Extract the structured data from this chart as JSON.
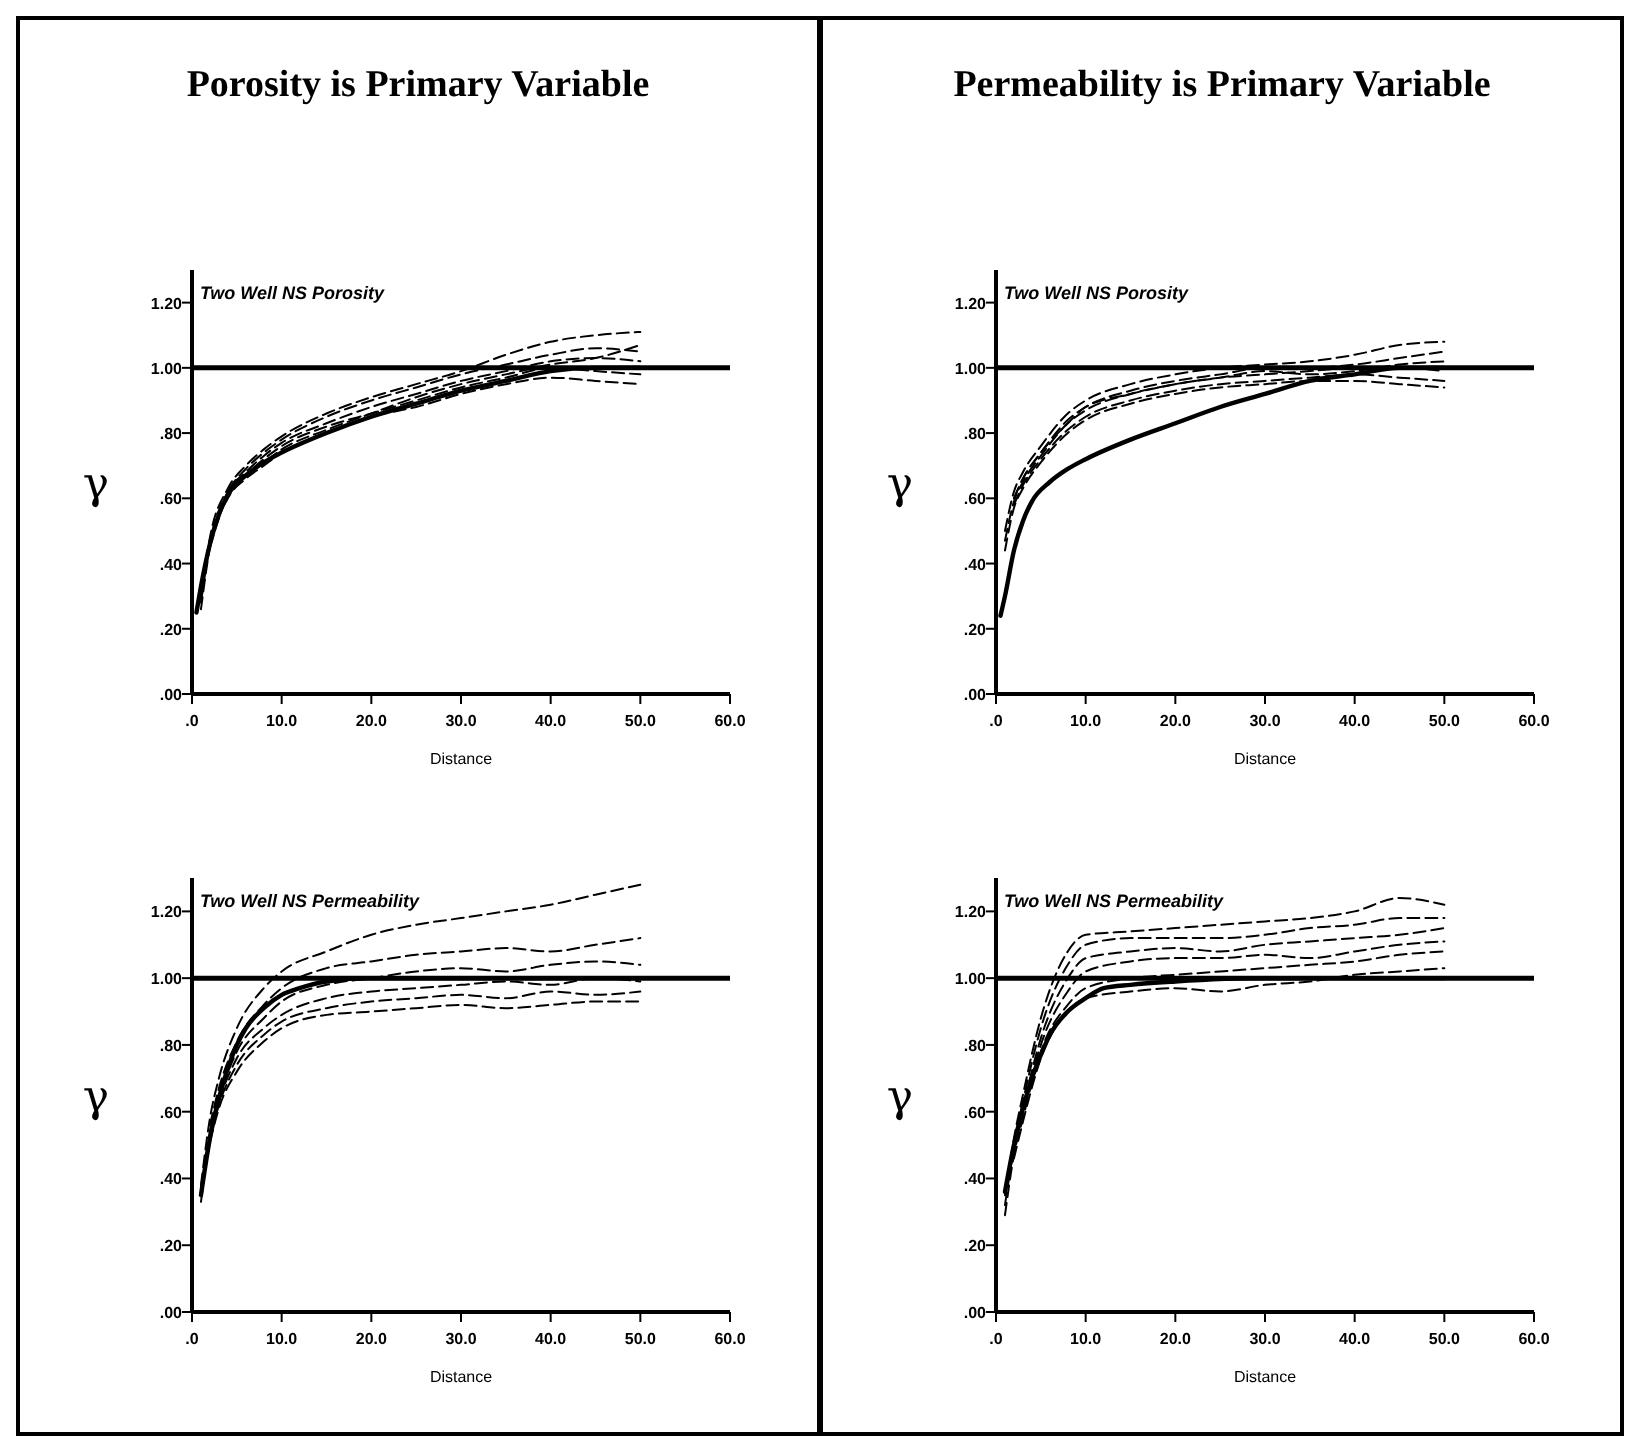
{
  "chart_data": [
    {
      "type": "line",
      "title": "Porosity is Primary Variable",
      "subtitle": "Two Well NS Porosity",
      "xlabel": "Distance",
      "ylabel": "γ",
      "xlim": [
        0,
        60
      ],
      "ylim": [
        0,
        1.3
      ],
      "xticks": [
        {
          "value": 0,
          "label": ".0"
        },
        {
          "value": 10,
          "label": "10.0"
        },
        {
          "value": 20,
          "label": "20.0"
        },
        {
          "value": 30,
          "label": "30.0"
        },
        {
          "value": 40,
          "label": "40.0"
        },
        {
          "value": 50,
          "label": "50.0"
        },
        {
          "value": 60,
          "label": "60.0"
        }
      ],
      "yticks": [
        {
          "value": 0,
          "label": ".00"
        },
        {
          "value": 0.2,
          "label": ".20"
        },
        {
          "value": 0.4,
          "label": ".40"
        },
        {
          "value": 0.6,
          "label": ".60"
        },
        {
          "value": 0.8,
          "label": ".80"
        },
        {
          "value": 1,
          "label": "1.00"
        },
        {
          "value": 1.2,
          "label": "1.20"
        }
      ],
      "ref_lines": [
        {
          "axis": "y",
          "value": 1,
          "color": "#000000"
        }
      ],
      "grid": false,
      "marker": "none",
      "series": [
        {
          "color": "#000000",
          "line_style": "solid",
          "x": [
            0.5,
            1,
            2,
            3,
            4,
            6,
            8,
            10,
            15,
            20,
            25,
            30,
            35,
            40,
            45,
            50
          ],
          "values": [
            0.25,
            0.33,
            0.46,
            0.55,
            0.61,
            0.67,
            0.71,
            0.74,
            0.8,
            0.85,
            0.89,
            0.93,
            0.96,
            0.99,
            1.0,
            1.0
          ]
        },
        {
          "color": "#000000",
          "line_style": "dashed",
          "x": [
            1,
            2,
            4,
            6,
            8,
            10,
            15,
            20,
            25,
            30,
            35,
            40,
            45,
            50
          ],
          "values": [
            0.3,
            0.48,
            0.63,
            0.7,
            0.75,
            0.79,
            0.86,
            0.91,
            0.95,
            0.99,
            1.04,
            1.08,
            1.1,
            1.11
          ]
        },
        {
          "color": "#000000",
          "line_style": "dashed",
          "x": [
            2,
            4,
            6,
            8,
            10,
            15,
            20,
            25,
            30,
            35,
            40,
            45,
            50
          ],
          "values": [
            0.47,
            0.62,
            0.69,
            0.74,
            0.78,
            0.85,
            0.9,
            0.94,
            0.98,
            1.01,
            1.04,
            1.06,
            1.05
          ]
        },
        {
          "color": "#000000",
          "line_style": "dashed",
          "x": [
            1,
            2,
            4,
            6,
            8,
            10,
            15,
            20,
            25,
            30,
            35,
            40,
            45,
            50
          ],
          "values": [
            0.28,
            0.46,
            0.62,
            0.68,
            0.73,
            0.77,
            0.83,
            0.88,
            0.92,
            0.96,
            0.99,
            1.02,
            1.03,
            1.02
          ]
        },
        {
          "color": "#000000",
          "line_style": "dashed",
          "x": [
            2,
            4,
            6,
            8,
            10,
            15,
            20,
            25,
            30,
            35,
            40,
            45,
            50
          ],
          "values": [
            0.46,
            0.61,
            0.67,
            0.72,
            0.76,
            0.82,
            0.86,
            0.9,
            0.94,
            0.97,
            1.0,
            0.99,
            0.98
          ]
        },
        {
          "color": "#000000",
          "line_style": "dashed",
          "x": [
            1,
            2,
            4,
            6,
            8,
            10,
            15,
            20,
            25,
            30,
            35,
            40,
            45,
            50
          ],
          "values": [
            0.26,
            0.45,
            0.6,
            0.66,
            0.7,
            0.74,
            0.8,
            0.85,
            0.88,
            0.92,
            0.95,
            0.97,
            0.96,
            0.95
          ]
        },
        {
          "color": "#000000",
          "line_style": "dashed",
          "x": [
            2,
            4,
            6,
            8,
            10,
            15,
            20,
            25,
            30,
            35,
            40,
            45,
            50
          ],
          "values": [
            0.45,
            0.61,
            0.67,
            0.71,
            0.75,
            0.81,
            0.86,
            0.91,
            0.95,
            0.98,
            1.01,
            1.03,
            1.07
          ]
        }
      ]
    },
    {
      "type": "line",
      "title": "Permeability is Primary Variable",
      "subtitle": "Two Well NS Porosity",
      "xlabel": "Distance",
      "ylabel": "γ",
      "xlim": [
        0,
        60
      ],
      "ylim": [
        0,
        1.3
      ],
      "xticks": [
        {
          "value": 0,
          "label": ".0"
        },
        {
          "value": 10,
          "label": "10.0"
        },
        {
          "value": 20,
          "label": "20.0"
        },
        {
          "value": 30,
          "label": "30.0"
        },
        {
          "value": 40,
          "label": "40.0"
        },
        {
          "value": 50,
          "label": "50.0"
        },
        {
          "value": 60,
          "label": "60.0"
        }
      ],
      "yticks": [
        {
          "value": 0,
          "label": ".00"
        },
        {
          "value": 0.2,
          "label": ".20"
        },
        {
          "value": 0.4,
          "label": ".40"
        },
        {
          "value": 0.6,
          "label": ".60"
        },
        {
          "value": 0.8,
          "label": ".80"
        },
        {
          "value": 1,
          "label": "1.00"
        },
        {
          "value": 1.2,
          "label": "1.20"
        }
      ],
      "ref_lines": [
        {
          "axis": "y",
          "value": 1,
          "color": "#000000"
        }
      ],
      "grid": false,
      "marker": "none",
      "series": [
        {
          "color": "#000000",
          "line_style": "solid",
          "x": [
            0.5,
            1,
            2,
            3,
            4,
            6,
            8,
            10,
            15,
            20,
            25,
            30,
            35,
            40,
            45,
            50
          ],
          "values": [
            0.24,
            0.3,
            0.44,
            0.53,
            0.59,
            0.65,
            0.69,
            0.72,
            0.78,
            0.83,
            0.88,
            0.92,
            0.96,
            0.98,
            1.0,
            1.0
          ]
        },
        {
          "color": "#000000",
          "line_style": "dashed",
          "x": [
            1,
            2,
            3,
            5,
            8,
            10,
            15,
            20,
            25,
            30,
            35,
            40,
            45,
            50
          ],
          "values": [
            0.5,
            0.62,
            0.68,
            0.76,
            0.86,
            0.9,
            0.95,
            0.98,
            1.0,
            1.01,
            1.02,
            1.04,
            1.07,
            1.08
          ]
        },
        {
          "color": "#000000",
          "line_style": "dashed",
          "x": [
            2,
            3,
            5,
            8,
            10,
            15,
            20,
            25,
            30,
            35,
            40,
            45,
            50
          ],
          "values": [
            0.6,
            0.66,
            0.74,
            0.84,
            0.88,
            0.93,
            0.96,
            0.98,
            1.0,
            1.0,
            1.01,
            1.03,
            1.05
          ]
        },
        {
          "color": "#000000",
          "line_style": "dashed",
          "x": [
            1,
            2,
            3,
            5,
            8,
            10,
            15,
            20,
            25,
            30,
            35,
            40,
            45,
            50
          ],
          "values": [
            0.47,
            0.59,
            0.65,
            0.73,
            0.83,
            0.87,
            0.92,
            0.95,
            0.97,
            0.98,
            0.99,
            1.0,
            1.0,
            0.99
          ]
        },
        {
          "color": "#000000",
          "line_style": "dashed",
          "x": [
            2,
            3,
            5,
            8,
            10,
            15,
            20,
            25,
            30,
            35,
            40,
            45,
            50
          ],
          "values": [
            0.58,
            0.64,
            0.72,
            0.81,
            0.85,
            0.9,
            0.93,
            0.95,
            0.96,
            0.97,
            0.98,
            0.97,
            0.96
          ]
        },
        {
          "color": "#000000",
          "line_style": "dashed",
          "x": [
            1,
            2,
            3,
            5,
            8,
            10,
            15,
            20,
            25,
            30,
            35,
            40,
            45,
            50
          ],
          "values": [
            0.44,
            0.57,
            0.63,
            0.71,
            0.8,
            0.84,
            0.89,
            0.92,
            0.94,
            0.95,
            0.96,
            0.96,
            0.95,
            0.94
          ]
        },
        {
          "color": "#000000",
          "line_style": "dashed",
          "x": [
            2,
            3,
            5,
            8,
            10,
            15,
            20,
            25,
            30,
            35,
            40,
            45,
            50
          ],
          "values": [
            0.6,
            0.66,
            0.74,
            0.83,
            0.88,
            0.92,
            0.95,
            0.97,
            0.99,
            0.98,
            0.99,
            1.01,
            1.02
          ]
        }
      ]
    },
    {
      "type": "line",
      "subtitle": "Two Well NS Permeability",
      "xlabel": "Distance",
      "ylabel": "γ",
      "xlim": [
        0,
        60
      ],
      "ylim": [
        0,
        1.3
      ],
      "xticks": [
        {
          "value": 0,
          "label": ".0"
        },
        {
          "value": 10,
          "label": "10.0"
        },
        {
          "value": 20,
          "label": "20.0"
        },
        {
          "value": 30,
          "label": "30.0"
        },
        {
          "value": 40,
          "label": "40.0"
        },
        {
          "value": 50,
          "label": "50.0"
        },
        {
          "value": 60,
          "label": "60.0"
        }
      ],
      "yticks": [
        {
          "value": 0,
          "label": ".00"
        },
        {
          "value": 0.2,
          "label": ".20"
        },
        {
          "value": 0.4,
          "label": ".40"
        },
        {
          "value": 0.6,
          "label": ".60"
        },
        {
          "value": 0.8,
          "label": ".80"
        },
        {
          "value": 1,
          "label": "1.00"
        },
        {
          "value": 1.2,
          "label": "1.20"
        }
      ],
      "ref_lines": [
        {
          "axis": "y",
          "value": 1,
          "color": "#000000"
        }
      ],
      "grid": false,
      "marker": "none",
      "series": [
        {
          "color": "#000000",
          "line_style": "solid",
          "x": [
            1,
            2,
            3,
            4,
            5,
            6,
            8,
            10,
            12,
            15,
            20,
            25,
            30,
            40,
            50
          ],
          "values": [
            0.35,
            0.52,
            0.64,
            0.73,
            0.8,
            0.85,
            0.91,
            0.95,
            0.97,
            0.99,
            1.0,
            1.0,
            1.0,
            1.0,
            1.0
          ]
        },
        {
          "color": "#000000",
          "line_style": "dashed",
          "x": [
            1,
            2,
            3,
            5,
            8,
            10,
            15,
            20,
            25,
            30,
            35,
            40,
            45,
            50
          ],
          "values": [
            0.38,
            0.58,
            0.7,
            0.85,
            0.97,
            1.02,
            1.08,
            1.13,
            1.16,
            1.18,
            1.2,
            1.22,
            1.25,
            1.28
          ]
        },
        {
          "color": "#000000",
          "line_style": "dashed",
          "x": [
            2,
            3,
            5,
            8,
            10,
            15,
            20,
            25,
            30,
            35,
            40,
            45,
            50
          ],
          "values": [
            0.56,
            0.67,
            0.81,
            0.92,
            0.97,
            1.03,
            1.05,
            1.07,
            1.08,
            1.09,
            1.08,
            1.1,
            1.12
          ]
        },
        {
          "color": "#000000",
          "line_style": "dashed",
          "x": [
            1,
            2,
            3,
            5,
            8,
            10,
            15,
            20,
            25,
            30,
            35,
            40,
            45,
            50
          ],
          "values": [
            0.36,
            0.54,
            0.64,
            0.78,
            0.88,
            0.93,
            0.98,
            1.0,
            1.02,
            1.03,
            1.02,
            1.04,
            1.05,
            1.04
          ]
        },
        {
          "color": "#000000",
          "line_style": "dashed",
          "x": [
            2,
            3,
            5,
            8,
            10,
            15,
            20,
            25,
            30,
            35,
            40,
            45,
            50
          ],
          "values": [
            0.53,
            0.63,
            0.76,
            0.85,
            0.89,
            0.94,
            0.96,
            0.97,
            0.98,
            0.99,
            0.98,
            1.0,
            0.99
          ]
        },
        {
          "color": "#000000",
          "line_style": "dashed",
          "x": [
            1,
            2,
            3,
            5,
            8,
            10,
            15,
            20,
            25,
            30,
            35,
            40,
            45,
            50
          ],
          "values": [
            0.33,
            0.52,
            0.62,
            0.74,
            0.83,
            0.87,
            0.91,
            0.93,
            0.94,
            0.95,
            0.94,
            0.96,
            0.95,
            0.96
          ]
        },
        {
          "color": "#000000",
          "line_style": "dashed",
          "x": [
            2,
            3,
            5,
            8,
            10,
            15,
            20,
            25,
            30,
            35,
            40,
            45,
            50
          ],
          "values": [
            0.51,
            0.61,
            0.72,
            0.81,
            0.85,
            0.89,
            0.9,
            0.91,
            0.92,
            0.91,
            0.92,
            0.93,
            0.93
          ]
        }
      ]
    },
    {
      "type": "line",
      "subtitle": "Two Well NS Permeability",
      "xlabel": "Distance",
      "ylabel": "γ",
      "xlim": [
        0,
        60
      ],
      "ylim": [
        0,
        1.3
      ],
      "xticks": [
        {
          "value": 0,
          "label": ".0"
        },
        {
          "value": 10,
          "label": "10.0"
        },
        {
          "value": 20,
          "label": "20.0"
        },
        {
          "value": 30,
          "label": "30.0"
        },
        {
          "value": 40,
          "label": "40.0"
        },
        {
          "value": 50,
          "label": "50.0"
        },
        {
          "value": 60,
          "label": "60.0"
        }
      ],
      "yticks": [
        {
          "value": 0,
          "label": ".00"
        },
        {
          "value": 0.2,
          "label": ".20"
        },
        {
          "value": 0.4,
          "label": ".40"
        },
        {
          "value": 0.6,
          "label": ".60"
        },
        {
          "value": 0.8,
          "label": ".80"
        },
        {
          "value": 1,
          "label": "1.00"
        },
        {
          "value": 1.2,
          "label": "1.20"
        }
      ],
      "ref_lines": [
        {
          "axis": "y",
          "value": 1,
          "color": "#000000"
        }
      ],
      "grid": false,
      "marker": "none",
      "series": [
        {
          "color": "#000000",
          "line_style": "solid",
          "x": [
            1,
            2,
            3,
            4,
            5,
            6,
            8,
            10,
            12,
            15,
            20,
            30,
            40,
            50
          ],
          "values": [
            0.36,
            0.5,
            0.61,
            0.7,
            0.77,
            0.83,
            0.9,
            0.94,
            0.97,
            0.98,
            0.99,
            1.0,
            1.0,
            1.0
          ]
        },
        {
          "color": "#000000",
          "line_style": "dashed",
          "x": [
            1,
            2,
            3,
            5,
            8,
            10,
            15,
            20,
            25,
            30,
            35,
            40,
            45,
            50
          ],
          "values": [
            0.35,
            0.52,
            0.65,
            0.88,
            1.08,
            1.13,
            1.14,
            1.15,
            1.16,
            1.17,
            1.18,
            1.2,
            1.24,
            1.22
          ]
        },
        {
          "color": "#000000",
          "line_style": "dashed",
          "x": [
            2,
            3,
            5,
            8,
            10,
            15,
            20,
            25,
            30,
            35,
            40,
            45,
            50
          ],
          "values": [
            0.5,
            0.63,
            0.85,
            1.04,
            1.1,
            1.12,
            1.12,
            1.12,
            1.13,
            1.15,
            1.16,
            1.18,
            1.18
          ]
        },
        {
          "color": "#000000",
          "line_style": "dashed",
          "x": [
            1,
            2,
            3,
            5,
            8,
            10,
            15,
            20,
            25,
            30,
            35,
            40,
            45,
            50
          ],
          "values": [
            0.32,
            0.49,
            0.61,
            0.82,
            1.0,
            1.06,
            1.08,
            1.09,
            1.08,
            1.1,
            1.11,
            1.12,
            1.13,
            1.15
          ]
        },
        {
          "color": "#000000",
          "line_style": "dashed",
          "x": [
            2,
            3,
            5,
            8,
            10,
            15,
            20,
            25,
            30,
            35,
            40,
            45,
            50
          ],
          "values": [
            0.48,
            0.6,
            0.8,
            0.96,
            1.02,
            1.05,
            1.06,
            1.06,
            1.07,
            1.06,
            1.08,
            1.1,
            1.11
          ]
        },
        {
          "color": "#000000",
          "line_style": "dashed",
          "x": [
            1,
            2,
            3,
            5,
            8,
            10,
            15,
            20,
            25,
            30,
            35,
            40,
            45,
            50
          ],
          "values": [
            0.29,
            0.47,
            0.58,
            0.78,
            0.92,
            0.97,
            1.0,
            1.01,
            1.02,
            1.03,
            1.04,
            1.05,
            1.07,
            1.08
          ]
        },
        {
          "color": "#000000",
          "line_style": "dashed",
          "x": [
            2,
            3,
            5,
            8,
            10,
            15,
            20,
            25,
            30,
            35,
            40,
            45,
            50
          ],
          "values": [
            0.46,
            0.57,
            0.76,
            0.9,
            0.94,
            0.96,
            0.97,
            0.96,
            0.98,
            0.99,
            1.01,
            1.02,
            1.03
          ]
        }
      ]
    }
  ]
}
